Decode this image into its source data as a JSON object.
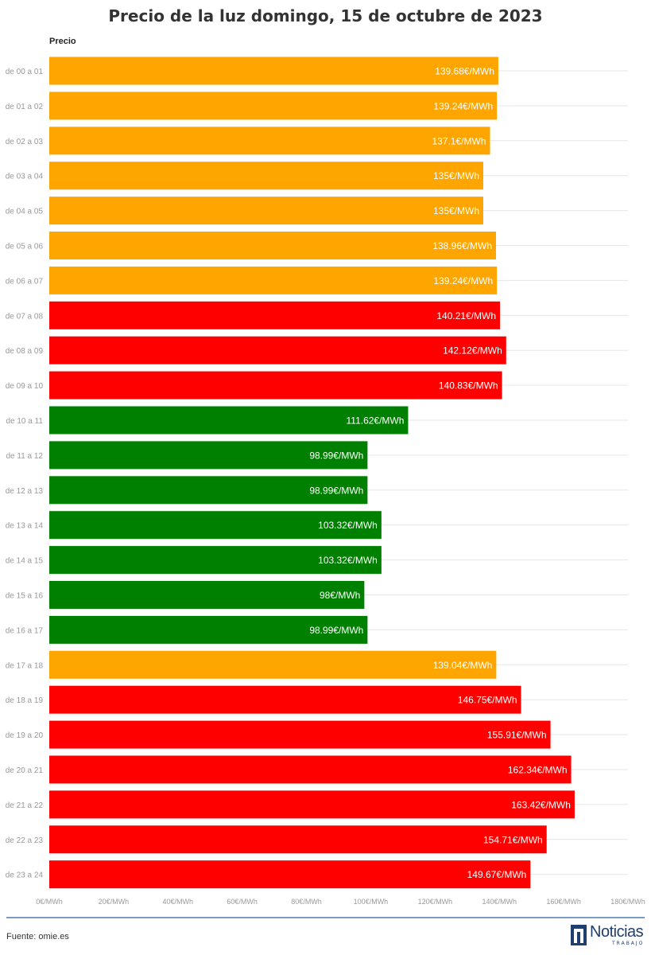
{
  "chart_data": {
    "type": "bar",
    "orientation": "horizontal",
    "title": "Precio de la luz domingo, 15 de octubre de 2023",
    "series_label": "Precio",
    "categories": [
      "de 00 a 01",
      "de 01 a 02",
      "de 02 a 03",
      "de 03 a 04",
      "de 04 a 05",
      "de 05 a 06",
      "de 06 a 07",
      "de 07 a 08",
      "de 08 a 09",
      "de 09 a 10",
      "de 10 a 11",
      "de 11 a 12",
      "de 12 a 13",
      "de 13 a 14",
      "de 14 a 15",
      "de 15 a 16",
      "de 16 a 17",
      "de 17 a 18",
      "de 18 a 19",
      "de 19 a 20",
      "de 20 a 21",
      "de 21 a 22",
      "de 22 a 23",
      "de 23 a 24"
    ],
    "values": [
      139.68,
      139.24,
      137.1,
      135,
      135,
      138.96,
      139.24,
      140.21,
      142.12,
      140.83,
      111.62,
      98.99,
      98.99,
      103.32,
      103.32,
      98,
      98.99,
      139.04,
      146.75,
      155.91,
      162.34,
      163.42,
      154.71,
      149.67
    ],
    "value_labels": [
      "139.68€/MWh",
      "139.24€/MWh",
      "137.1€/MWh",
      "135€/MWh",
      "135€/MWh",
      "138.96€/MWh",
      "139.24€/MWh",
      "140.21€/MWh",
      "142.12€/MWh",
      "140.83€/MWh",
      "111.62€/MWh",
      "98.99€/MWh",
      "98.99€/MWh",
      "103.32€/MWh",
      "103.32€/MWh",
      "98€/MWh",
      "98.99€/MWh",
      "139.04€/MWh",
      "146.75€/MWh",
      "155.91€/MWh",
      "162.34€/MWh",
      "163.42€/MWh",
      "154.71€/MWh",
      "149.67€/MWh"
    ],
    "bar_colors": [
      "#ffa500",
      "#ffa500",
      "#ffa500",
      "#ffa500",
      "#ffa500",
      "#ffa500",
      "#ffa500",
      "#ff0000",
      "#ff0000",
      "#ff0000",
      "#008000",
      "#008000",
      "#008000",
      "#008000",
      "#008000",
      "#008000",
      "#008000",
      "#ffa500",
      "#ff0000",
      "#ff0000",
      "#ff0000",
      "#ff0000",
      "#ff0000",
      "#ff0000"
    ],
    "xlim": [
      0,
      180
    ],
    "xticks": [
      0,
      20,
      40,
      60,
      80,
      100,
      120,
      140,
      160,
      180
    ],
    "xtick_labels": [
      "0€/MWh",
      "20€/MWh",
      "40€/MWh",
      "60€/MWh",
      "80€/MWh",
      "100€/MWh",
      "120€/MWh",
      "140€/MWh",
      "160€/MWh",
      "180€/MWh"
    ],
    "grid": true
  },
  "footer": {
    "source": "Fuente: omie.es",
    "logo_text": "Noticias",
    "logo_sub": "TRABAJO"
  }
}
